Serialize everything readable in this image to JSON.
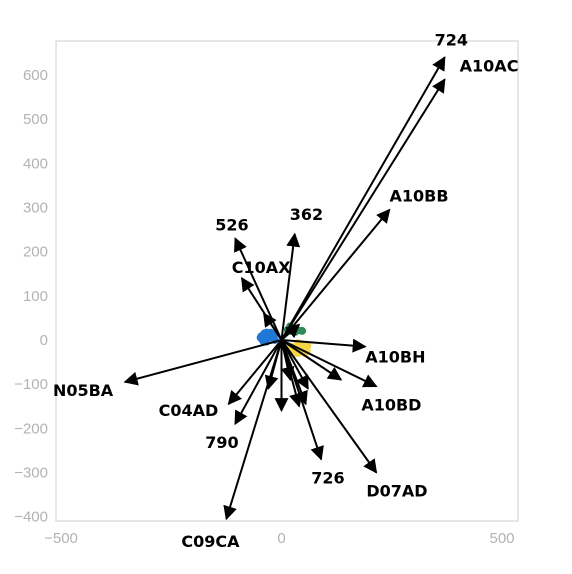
{
  "chart_data": {
    "type": "biplot",
    "title": "",
    "xlabel": "",
    "ylabel": "",
    "xlim": [
      -510,
      520
    ],
    "ylim": [
      -405,
      660
    ],
    "xticks": [
      -500,
      0,
      500
    ],
    "yticks": [
      -400,
      -300,
      -200,
      -100,
      0,
      100,
      200,
      300,
      400,
      500,
      600
    ],
    "grid": false,
    "arrows": [
      {
        "label": "724",
        "x": 370,
        "y": 640
      },
      {
        "label": "A10AC",
        "x": 370,
        "y": 590
      },
      {
        "label": "A10BB",
        "x": 245,
        "y": 295
      },
      {
        "label": "362",
        "x": 30,
        "y": 240
      },
      {
        "label": "526",
        "x": -105,
        "y": 230
      },
      {
        "label": "C10AX",
        "x": -90,
        "y": 140
      },
      {
        "label": "A10BH",
        "x": 190,
        "y": -15
      },
      {
        "label": "N05BA",
        "x": -355,
        "y": -95
      },
      {
        "label": "C04AD",
        "x": -120,
        "y": -145
      },
      {
        "label": "A10BD",
        "x": 215,
        "y": -105
      },
      {
        "label": "790",
        "x": -105,
        "y": -190
      },
      {
        "label": "726",
        "x": 90,
        "y": -270
      },
      {
        "label": "D07AD",
        "x": 215,
        "y": -300
      },
      {
        "label": "C09CA",
        "x": -125,
        "y": -405
      }
    ],
    "extra_arrows": [
      {
        "x": 0,
        "y": -160
      },
      {
        "x": 55,
        "y": -145
      },
      {
        "x": 40,
        "y": -150
      },
      {
        "x": 135,
        "y": -90
      },
      {
        "x": -30,
        "y": -110
      },
      {
        "x": 20,
        "y": -90
      },
      {
        "x": 60,
        "y": -110
      },
      {
        "x": -40,
        "y": 60
      },
      {
        "x": 40,
        "y": 35
      }
    ],
    "point_clusters": [
      {
        "color": "#1f78d6",
        "cx": -35,
        "cy": 5,
        "n": 30
      },
      {
        "color": "#f5d547",
        "cx": 40,
        "cy": -20,
        "n": 30
      },
      {
        "color": "#2e8b57",
        "cx": 30,
        "cy": 20,
        "n": 12
      }
    ],
    "colors": {
      "arrow": "#000000",
      "tick_labels": "#b3b3b3",
      "axis_box": "#cccccc"
    }
  }
}
